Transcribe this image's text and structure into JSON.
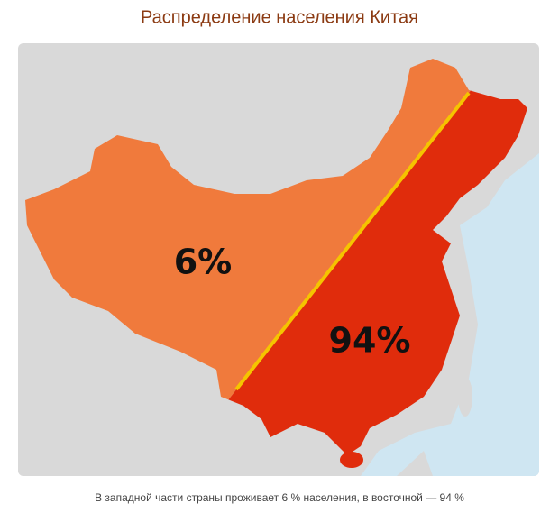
{
  "title": "Распределение населения Китая",
  "map": {
    "regions": [
      {
        "label": "6%"
      },
      {
        "label": "94%"
      }
    ]
  },
  "caption": "В западной части страны проживает 6 % населения, в восточной — 94 %"
}
